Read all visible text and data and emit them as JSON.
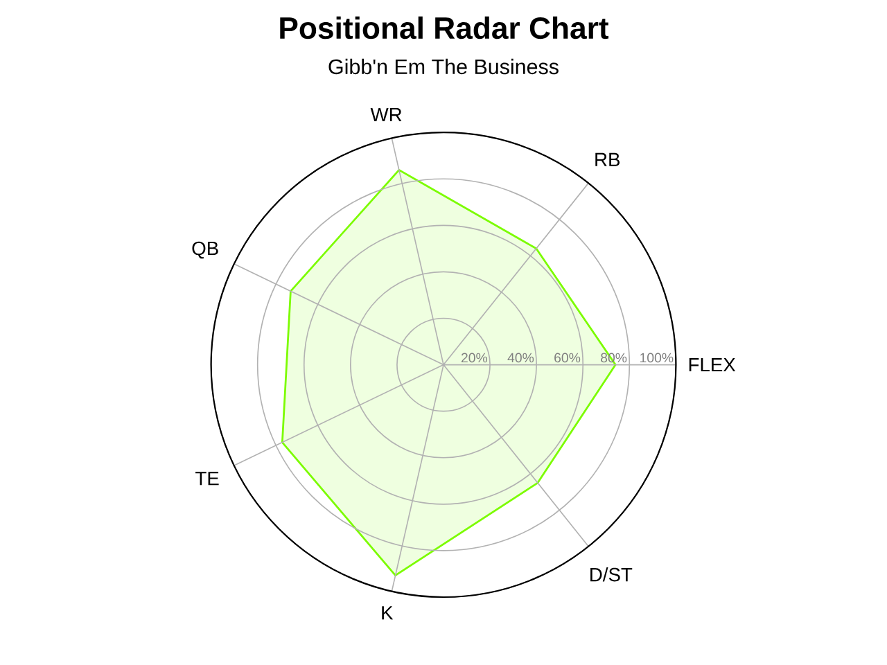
{
  "chart_data": {
    "type": "radar",
    "title": "Positional Radar Chart",
    "subtitle": "Gibb'n Em The Business",
    "categories": [
      "WR",
      "RB",
      "FLEX",
      "D/ST",
      "K",
      "TE",
      "QB"
    ],
    "series": [
      {
        "color": "#7cfc00",
        "values": [
          86,
          64,
          74,
          65,
          93,
          77,
          73
        ]
      }
    ],
    "ylim": [
      0,
      100
    ],
    "yticks": [
      {
        "value": 20,
        "label": "20%"
      },
      {
        "value": 40,
        "label": "40%"
      },
      {
        "value": 60,
        "label": "60%"
      },
      {
        "value": 80,
        "label": "80%"
      },
      {
        "value": 100,
        "label": "100%"
      }
    ],
    "grid": true
  }
}
